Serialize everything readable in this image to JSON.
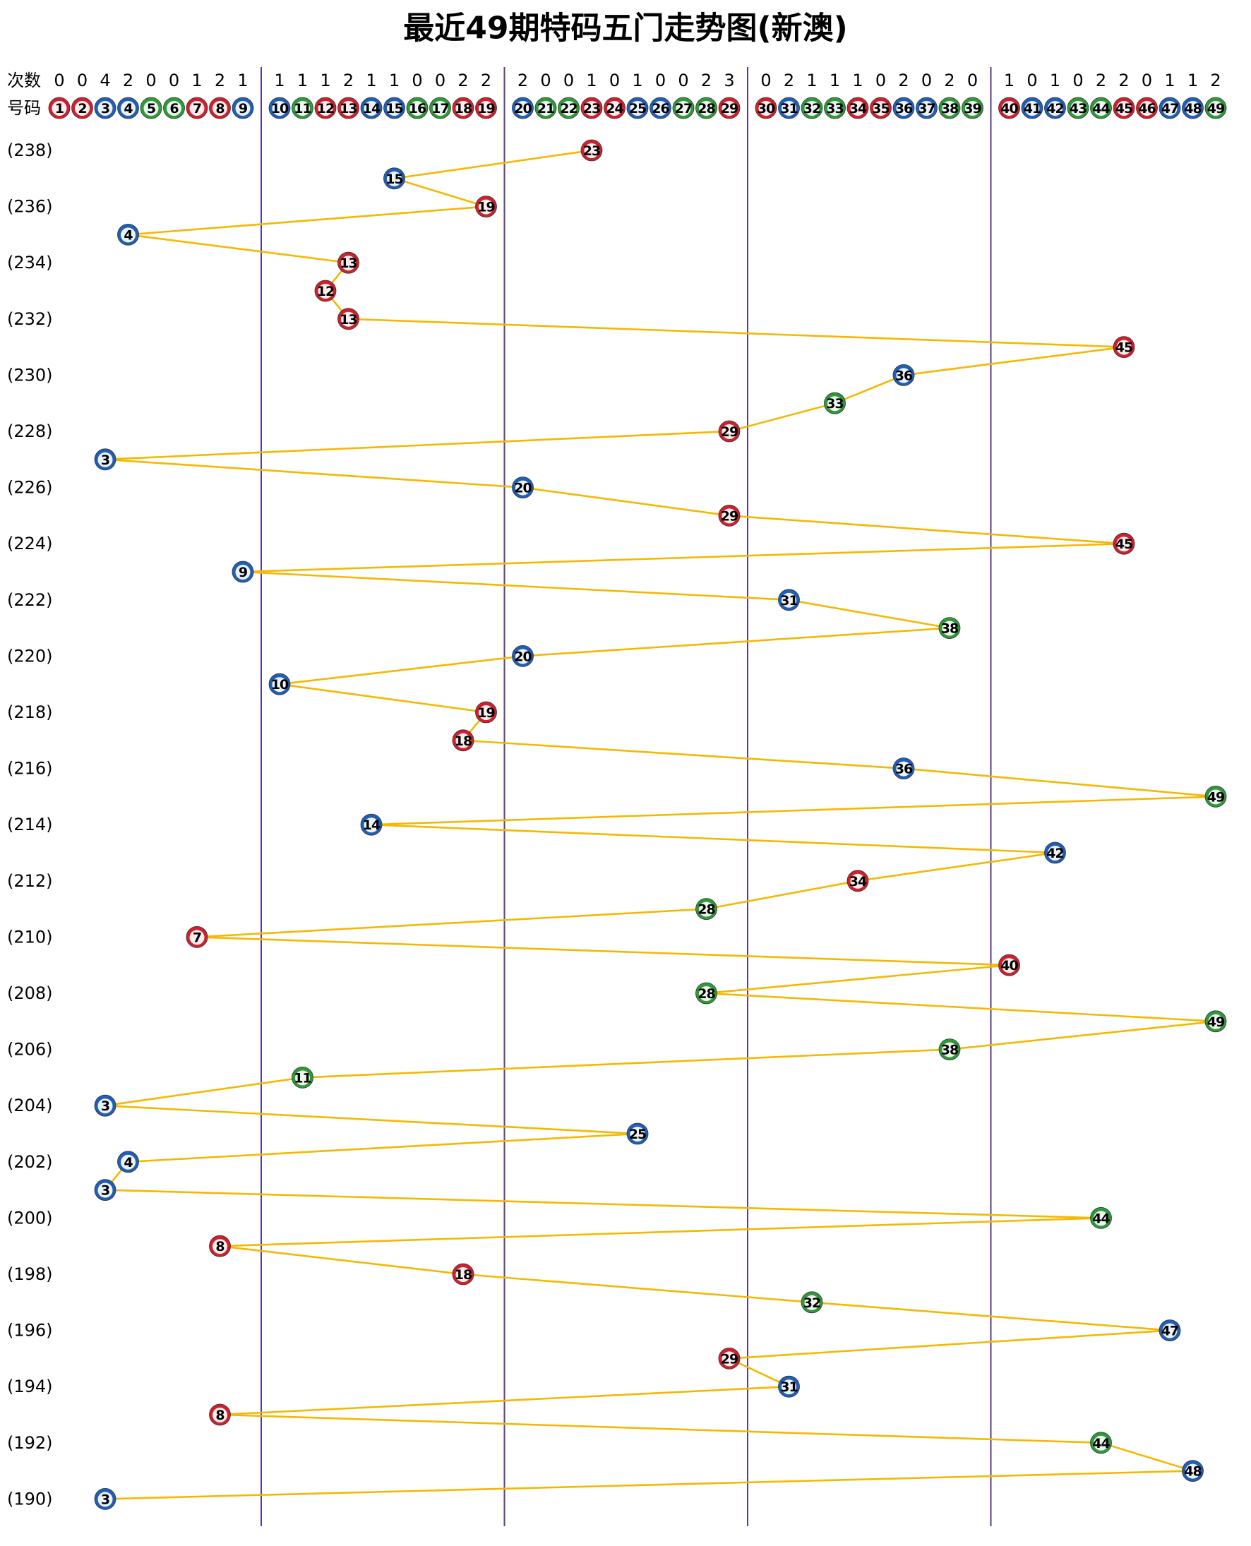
{
  "chart_data": {
    "type": "trend",
    "title": "最近49期特码五门走势图(新澳)",
    "count_label": "次数",
    "number_label": "号码",
    "numbers": [
      1,
      2,
      3,
      4,
      5,
      6,
      7,
      8,
      9,
      10,
      11,
      12,
      13,
      14,
      15,
      16,
      17,
      18,
      19,
      20,
      21,
      22,
      23,
      24,
      25,
      26,
      27,
      28,
      29,
      30,
      31,
      32,
      33,
      34,
      35,
      36,
      37,
      38,
      39,
      40,
      41,
      42,
      43,
      44,
      45,
      46,
      47,
      48,
      49
    ],
    "counts": [
      0,
      0,
      4,
      2,
      0,
      0,
      1,
      2,
      1,
      1,
      1,
      1,
      2,
      1,
      1,
      0,
      0,
      2,
      2,
      2,
      0,
      0,
      1,
      0,
      1,
      0,
      0,
      2,
      3,
      0,
      2,
      1,
      1,
      1,
      0,
      2,
      0,
      2,
      0,
      1,
      0,
      1,
      0,
      2,
      2,
      0,
      1,
      1,
      2
    ],
    "number_colors": [
      "#d0202e",
      "#d0202e",
      "#1f5fb8",
      "#1f5fb8",
      "#2e9a3a",
      "#2e9a3a",
      "#d0202e",
      "#d0202e",
      "#1f5fb8",
      "#1f5fb8",
      "#2e9a3a",
      "#d0202e",
      "#d0202e",
      "#1f5fb8",
      "#1f5fb8",
      "#2e9a3a",
      "#2e9a3a",
      "#d0202e",
      "#d0202e",
      "#1f5fb8",
      "#2e9a3a",
      "#2e9a3a",
      "#d0202e",
      "#d0202e",
      "#1f5fb8",
      "#1f5fb8",
      "#2e9a3a",
      "#2e9a3a",
      "#d0202e",
      "#d0202e",
      "#1f5fb8",
      "#2e9a3a",
      "#2e9a3a",
      "#d0202e",
      "#d0202e",
      "#1f5fb8",
      "#1f5fb8",
      "#2e9a3a",
      "#2e9a3a",
      "#d0202e",
      "#1f5fb8",
      "#1f5fb8",
      "#2e9a3a",
      "#2e9a3a",
      "#d0202e",
      "#d0202e",
      "#1f5fb8",
      "#1f5fb8",
      "#2e9a3a"
    ],
    "line_color": "#f5b800",
    "divider_color": "#5a3c8c",
    "categories": [
      "(238)",
      null,
      "(236)",
      null,
      "(234)",
      null,
      "(232)",
      null,
      "(230)",
      null,
      "(228)",
      null,
      "(226)",
      null,
      "(224)",
      null,
      "(222)",
      null,
      "(220)",
      null,
      "(218)",
      null,
      "(216)",
      null,
      "(214)",
      null,
      "(212)",
      null,
      "(210)",
      null,
      "(208)",
      null,
      "(206)",
      null,
      "(204)",
      null,
      "(202)",
      null,
      "(200)",
      null,
      "(198)",
      null,
      "(196)",
      null,
      "(194)",
      null,
      "(192)",
      null,
      "(190)"
    ],
    "values": [
      23,
      15,
      19,
      4,
      13,
      12,
      13,
      45,
      36,
      33,
      29,
      3,
      20,
      29,
      45,
      9,
      31,
      38,
      20,
      10,
      19,
      18,
      36,
      49,
      14,
      42,
      34,
      28,
      7,
      40,
      28,
      49,
      38,
      11,
      3,
      25,
      4,
      3,
      44,
      8,
      18,
      32,
      47,
      29,
      31,
      8,
      44,
      48,
      3
    ]
  }
}
